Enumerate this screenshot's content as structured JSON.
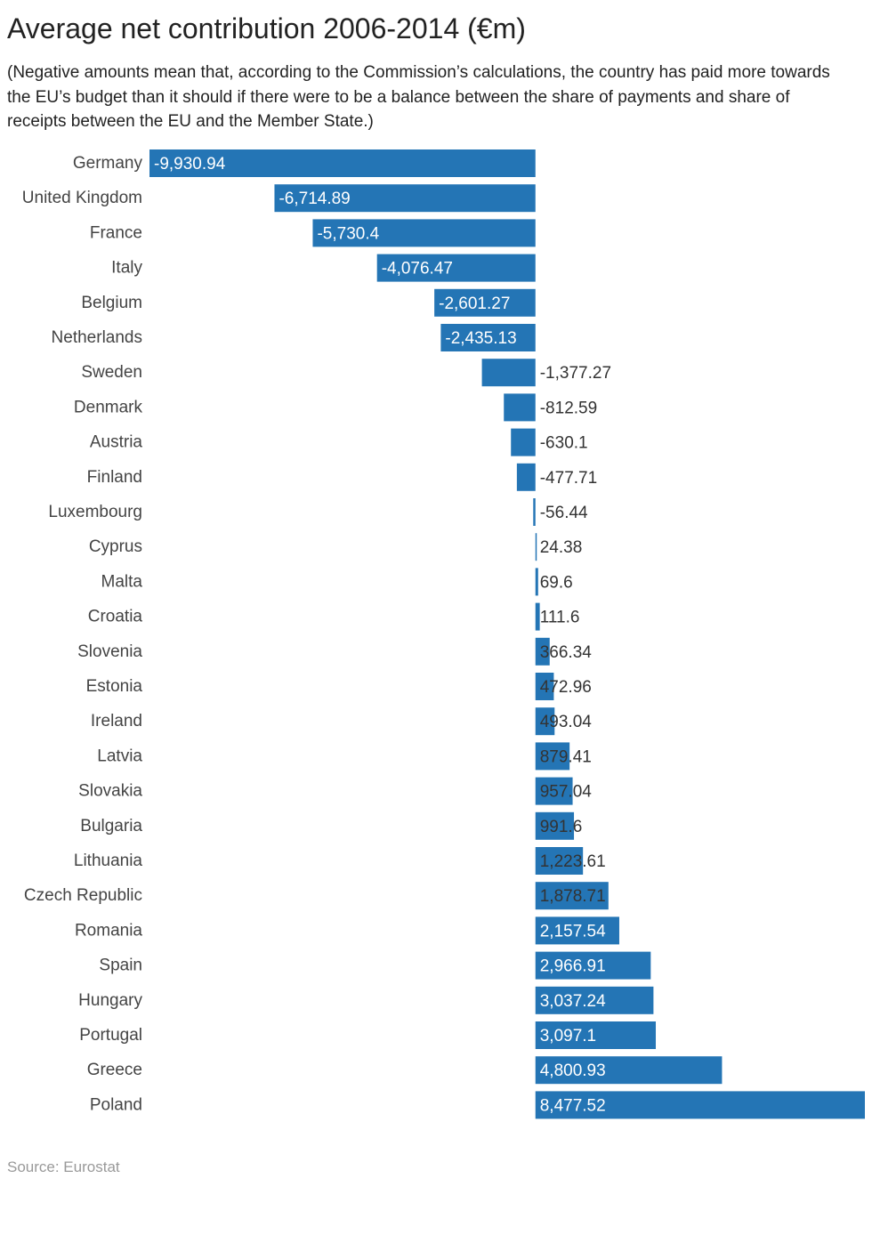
{
  "title": "Average net contribution 2006-2014 (€m)",
  "subtitle": "(Negative amounts mean that, according to the Commission’s calculations, the country has paid more towards the EU’s budget than it should if there were to be a balance between the share of payments and share of receipts between the EU and the Member State.)",
  "source": "Source: Eurostat",
  "colors": {
    "bar": "#2475b5",
    "label_inside": "#ffffff",
    "label_outside": "#333333",
    "category": "#444444"
  },
  "chart_data": {
    "type": "bar",
    "orientation": "horizontal",
    "categories": [
      "Germany",
      "United Kingdom",
      "France",
      "Italy",
      "Belgium",
      "Netherlands",
      "Sweden",
      "Denmark",
      "Austria",
      "Finland",
      "Luxembourg",
      "Cyprus",
      "Malta",
      "Croatia",
      "Slovenia",
      "Estonia",
      "Ireland",
      "Latvia",
      "Slovakia",
      "Bulgaria",
      "Lithuania",
      "Czech Republic",
      "Romania",
      "Spain",
      "Hungary",
      "Portugal",
      "Greece",
      "Poland"
    ],
    "values": [
      -9930.94,
      -6714.89,
      -5730.4,
      -4076.47,
      -2601.27,
      -2435.13,
      -1377.27,
      -812.59,
      -630.1,
      -477.71,
      -56.44,
      24.38,
      69.6,
      111.6,
      366.34,
      472.96,
      493.04,
      879.41,
      957.04,
      991.6,
      1223.61,
      1878.71,
      2157.54,
      2966.91,
      3037.24,
      3097.1,
      4800.93,
      8477.52
    ],
    "value_labels": [
      "-9,930.94",
      "-6,714.89",
      "-5,730.4",
      "-4,076.47",
      "-2,601.27",
      "-2,435.13",
      "-1,377.27",
      "-812.59",
      "-630.1",
      "-477.71",
      "-56.44",
      "24.38",
      "69.6",
      "111.6",
      "366.34",
      "472.96",
      "493.04",
      "879.41",
      "957.04",
      "991.6",
      "1,223.61",
      "1,878.71",
      "2,157.54",
      "2,966.91",
      "3,037.24",
      "3,097.1",
      "4,800.93",
      "8,477.52"
    ],
    "xlim": [
      -9930.94,
      8477.52
    ],
    "grid": false,
    "legend": "none"
  }
}
